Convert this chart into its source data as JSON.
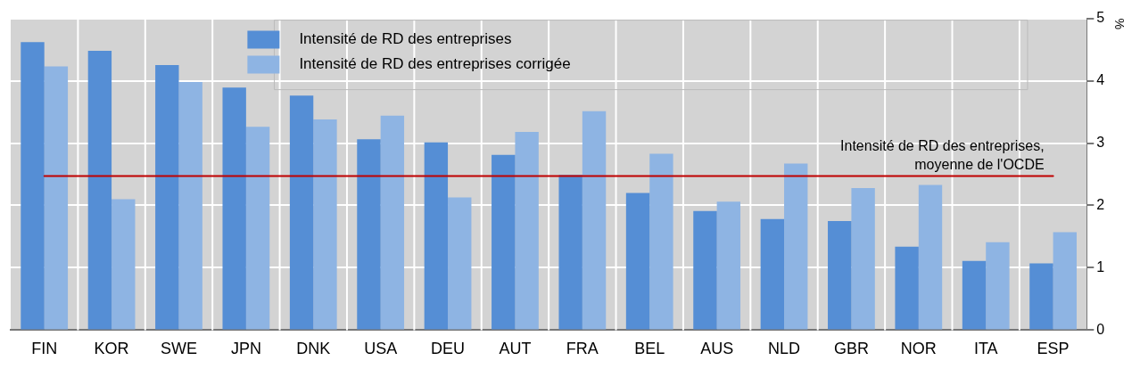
{
  "chart_data": {
    "type": "bar",
    "ylabel": "%",
    "categories": [
      "FIN",
      "KOR",
      "SWE",
      "JPN",
      "DNK",
      "USA",
      "DEU",
      "AUT",
      "FRA",
      "BEL",
      "AUS",
      "NLD",
      "GBR",
      "NOR",
      "ITA",
      "ESP"
    ],
    "series": [
      {
        "name": "Intensité de RD des entreprises",
        "color": "#558ed5",
        "values": [
          4.62,
          4.48,
          4.25,
          3.89,
          3.76,
          3.06,
          3.01,
          2.81,
          2.49,
          2.2,
          1.91,
          1.78,
          1.75,
          1.34,
          1.11,
          1.07
        ]
      },
      {
        "name": "Intensité de RD des entreprises corrigée",
        "color": "#8eb4e3",
        "values": [
          4.23,
          2.1,
          3.98,
          3.26,
          3.38,
          3.44,
          2.13,
          3.18,
          3.51,
          2.83,
          2.06,
          2.67,
          2.28,
          2.33,
          1.41,
          1.57
        ]
      }
    ],
    "ylim": [
      0,
      5
    ],
    "yticks": [
      0,
      1,
      2,
      3,
      4,
      5
    ],
    "grid": true,
    "legend": "top",
    "ref_lines": [
      {
        "axis": "y",
        "value": 2.47,
        "label": "Intensité de RD des entreprises,\nmoyenne de l'OCDE",
        "color": "#c00000"
      }
    ]
  }
}
